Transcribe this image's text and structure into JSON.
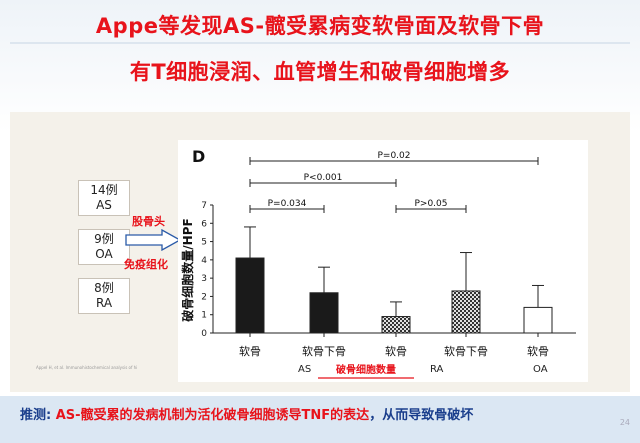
{
  "slide": {
    "title_line1": "Appe等发现AS-髋受累病变软骨面及软骨下骨",
    "title_line2": "有T细胞浸润、血管增生和破骨细胞增多",
    "cases": [
      "14例 AS",
      "9例 OA",
      "8例 RA"
    ],
    "cases_lines": [
      [
        "14例",
        "AS"
      ],
      [
        "9例",
        "OA"
      ],
      [
        "8例",
        "RA"
      ]
    ],
    "arrow_label_top": "股骨头",
    "arrow_label_bottom": "免疫组化",
    "citation": "Appel H, et al. Immunohistochemical analysis of hi",
    "conclusion_prefix": "推测: ",
    "conclusion_highlight": "AS-髋受累的发病机制为活化破骨细胞诱导TNF的表达",
    "conclusion_suffix": "，从而导致骨破坏",
    "page_number": "24"
  },
  "chart_data": {
    "type": "bar",
    "panel_label": "D",
    "categories": [
      "软骨",
      "软骨下骨",
      "软骨",
      "软骨下骨",
      "软骨"
    ],
    "groups": [
      "AS",
      "RA",
      "OA"
    ],
    "values": [
      4.1,
      2.2,
      0.9,
      2.3,
      1.4
    ],
    "errors": [
      1.7,
      1.4,
      0.8,
      2.1,
      1.2
    ],
    "fills": [
      "black",
      "black",
      "checkered",
      "checkered",
      "white"
    ],
    "ylabel": "破骨细胞数量/HPF",
    "xlabel": "破骨细胞数量",
    "ylim": [
      0,
      7
    ],
    "yticks": [
      "0",
      "1",
      "2",
      "3",
      "4",
      "5",
      "6",
      "7"
    ],
    "annotations": [
      "P=0.02",
      "P<0.001",
      "P=0.034",
      "P>0.05"
    ],
    "colors": {
      "dark": "#1a1a1a",
      "checker_dark": "#333333",
      "checker_light": "#e0e0e0",
      "white": "#ffffff",
      "xlabel": "#e8131b"
    }
  }
}
